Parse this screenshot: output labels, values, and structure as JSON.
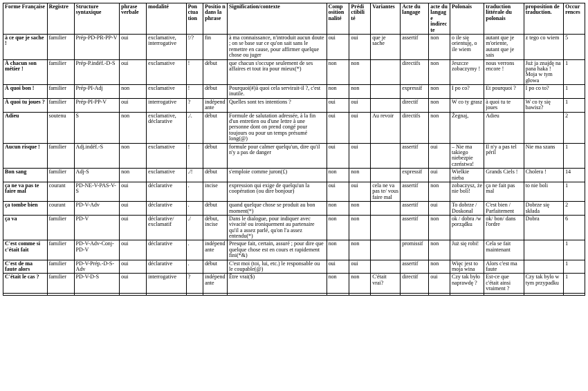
{
  "headers": [
    "Forme Française",
    "Registre",
    "Structure syntaxique",
    "phrase verbale",
    "modalité",
    "Pon ctua tion",
    "Positio n dans la phrase",
    "Signification/contexte",
    "Comp osition nalité",
    "Prédi ctibili té",
    "Variantes",
    "Acte du langage",
    "acte du langag e indirecte",
    "Polonais",
    "traduction littérale du polonais",
    "proposition de traduction.",
    "Occur rences"
  ],
  "rows": [
    [
      "à ce que je sache !",
      "familier",
      "Prép-PD-PR-PP-V",
      "oui",
      "exclamative, interrogative",
      "!/?",
      "fin",
      "à ma connaissance, n'introduit aucun doute ; on se base sur ce qu'on sait sans le remettre en cause, pour affirmer quelque chose ou juger",
      "oui",
      "oui",
      "que je sache",
      "assertif",
      "non",
      "o ile się orientuję, o ile wiem",
      "autant que je m'oriente, autant que je sais",
      "z tego co wiem",
      "5"
    ],
    [
      "À chacun son métier !",
      "familier",
      "Prép-P.indéf.-D-S",
      "oui",
      "exclamative",
      "!",
      "début",
      "que chacun s'occupe seulement de ses affaires et tout ira pour mieux(*)",
      "non",
      "non",
      "",
      "directifs",
      "non",
      "Jeszcze zobaczymy !",
      "nous verrons encore !",
      "Już ja znajdę na pana haka ! Moja w tym głowa",
      "1"
    ],
    [
      "À quoi bon !",
      "familier",
      "Prép-PI-Adj",
      "non",
      "exclamative",
      "!",
      "début",
      "Pourquoi(#)à quoi cela servirait-il ?, c'est inutile.",
      "non",
      "non",
      "",
      "expressif",
      "non",
      "I po co?",
      "Et pourquoi ?",
      "I po co to?",
      "1"
    ],
    [
      "À quoi tu joues ?",
      "familier",
      "Prép-PI-PP-V",
      "oui",
      "interrogative",
      "?",
      "indépendante",
      "Quelles sont tes intentions ?",
      "oui",
      "oui",
      "",
      "directif",
      "non",
      "W co ty grasz",
      "à quoi tu te joues",
      "W co ty się bawisz?",
      "1"
    ],
    [
      "Adieu",
      "soutenu",
      "S",
      "non",
      "exclamative, déclarative",
      "./.",
      "début",
      "Formule de salutation adressée, à la fin d'un entretien ou d'une lettre à une personne dont on prend congé pour toujours ou pour un temps présumé long(@)",
      "oui",
      "oui",
      "Au revoir",
      "directifs",
      "non",
      "Żegnaj,",
      "Adieu",
      "",
      "2"
    ],
    [
      "Aucun risque !",
      "familier",
      "Adj.indéf.-S",
      "non",
      "exclamative",
      "!",
      "début",
      "formule pour calmer quelqu'un, dire qu'il n'y a pas de danger",
      "oui",
      "oui",
      "",
      "assertif",
      "oui",
      "– Nie ma takiego niebezpie czeństwa!",
      "Il n'y a pas tel péril",
      "Nie ma szans",
      "1"
    ],
    [
      "Bon sang",
      "familier",
      "Adj-S",
      "non",
      "exclamative",
      "./!",
      "début",
      "s'emploie comme juron(£)",
      "non",
      "non",
      "",
      "expressif",
      "oui",
      "Wielkie nieba",
      "Grands Ciels !",
      "Cholera !",
      "14"
    ],
    [
      "ça ne va pas te faire mal",
      "courant",
      "PD-NE-V-PAS-V-S",
      "oui",
      "déclarative",
      ".",
      "incise",
      "expression qui exige de quelqu'un la coopération (ou dire bonjour)",
      "oui",
      "oui",
      "cela ne va pas te/ vous faire mal",
      "assertif",
      "non",
      "zobaczysz, że nie boli!",
      "ça ne fait pas mal",
      "to nie boli",
      "1"
    ],
    [
      "ça tombe bien",
      "courant",
      "PD-V-Adv",
      "oui",
      "déclarative",
      ".",
      "début",
      "quand quelque chose se produit au bon moment(*)",
      "non",
      "non",
      "",
      "assertif",
      "oui",
      "To dobrze / Doskonal",
      "C'est bien / Parfaitement",
      "Dobrze się składa",
      "2"
    ],
    [
      "ça va",
      "familier",
      "PD-V",
      "oui",
      "déclarative/ exclamatif",
      "./",
      "début, incise",
      "Dans le dialogue, pour indiquer avec vivacité ou ironiquement au partenaire qu'il a assez parlé, qu'on l'a assez entendu(*)",
      "non",
      "non",
      "",
      "assertif",
      "non",
      "ok / dobra /w porządku",
      "ok/ bon/ dans l'ordre",
      "Dobra",
      "6"
    ],
    [
      "C'est comme si c'était fait",
      "familier",
      "PD-V-Adv-Conj-PD-V",
      "oui",
      "déclarative",
      ".",
      "indépendante",
      "Presque fait, certain, assuré ; pour dire que quelque chose est en cours et rapidement fini(*&)",
      "non",
      "non",
      "",
      "promissif",
      "non",
      "Już się robi!",
      "Cela se fait maintenant",
      "",
      "1"
    ],
    [
      "C'est de ma faute alors",
      "familier",
      "PD-V-Prép.-D-S-Adv",
      "oui",
      "déclarative",
      ".",
      "début",
      "C'est moi (toi, lui, etc.) le responsable ou le coupable(@)",
      "oui",
      "oui",
      "",
      "assertif",
      "non",
      "Więc jest to moja wina",
      "Alors c'est ma faute",
      "",
      "1"
    ],
    [
      "C'était le cas ?",
      "familier",
      "PD-V-D-S",
      "oui",
      "interrogative",
      "?",
      "indépendante",
      "Être vrai($)",
      "non",
      "non",
      "C'était vrai?",
      "directif",
      "oui",
      "Czy tak było naprawdę ?",
      "Est-ce que c'était ainsi vraiment ?",
      "Czy tak bylo w tym przypadku",
      "1"
    ],
    [
      "",
      "",
      "",
      "",
      "",
      "",
      "",
      "",
      "",
      "",
      "",
      "",
      "",
      "",
      "",
      "",
      ""
    ]
  ]
}
